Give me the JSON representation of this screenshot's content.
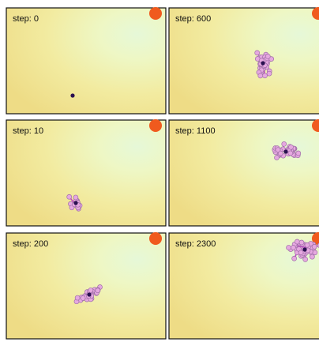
{
  "panels": [
    {
      "label": "step: 0"
    },
    {
      "label": "step: 600"
    },
    {
      "label": "step: 10"
    },
    {
      "label": "step: 1100"
    },
    {
      "label": "step: 200"
    },
    {
      "label": "step: 2300"
    }
  ]
}
